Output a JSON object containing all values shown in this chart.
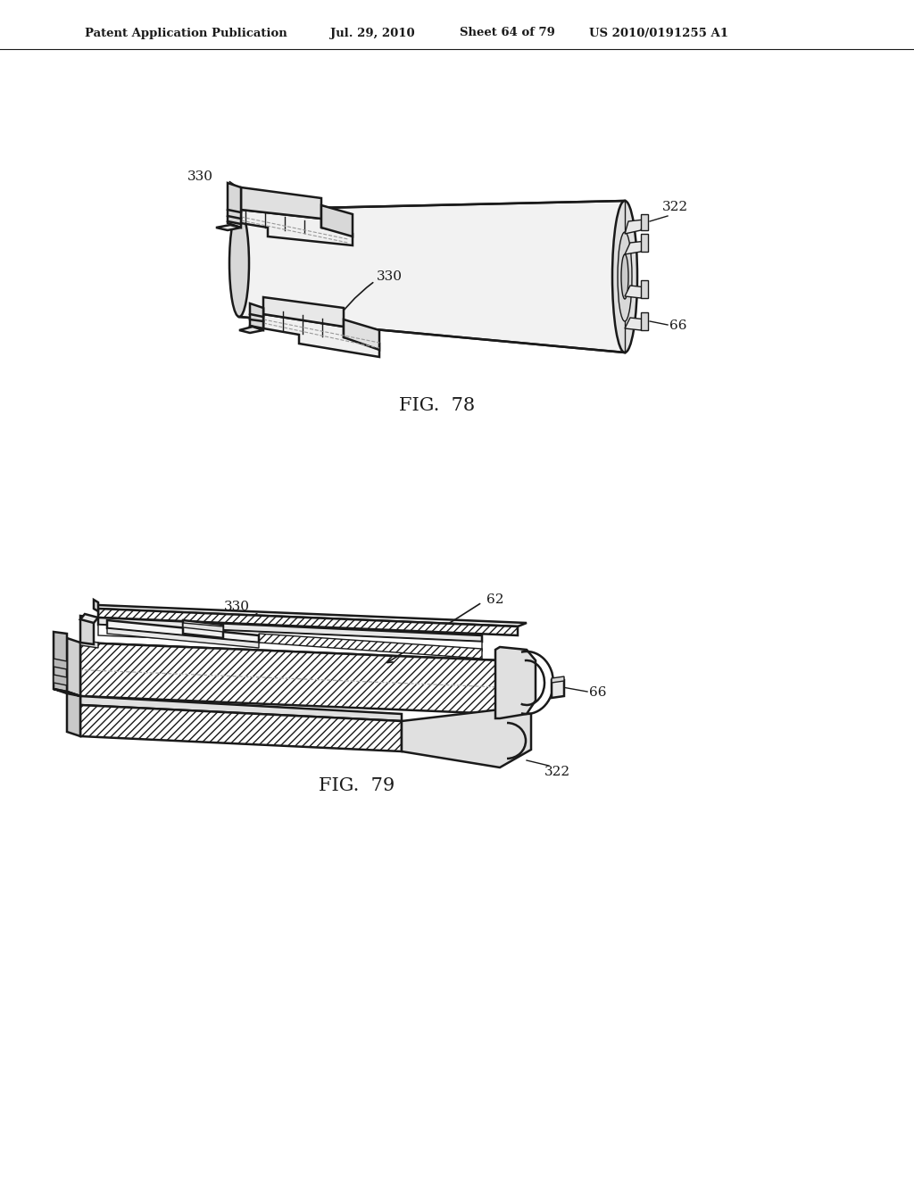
{
  "background_color": "#ffffff",
  "line_color": "#1a1a1a",
  "header_text": "Patent Application Publication",
  "header_date": "Jul. 29, 2010",
  "header_sheet": "Sheet 64 of 79",
  "header_patent": "US 2010/0191255 A1",
  "fig78_label": "FIG.  78",
  "fig79_label": "FIG.  79",
  "label_330_top": "330",
  "label_330_bot": "330",
  "label_66_78": "66",
  "label_322_78": "322",
  "label_330_79": "330",
  "label_62_79": "62",
  "label_66_79": "66",
  "label_322_79": "322"
}
